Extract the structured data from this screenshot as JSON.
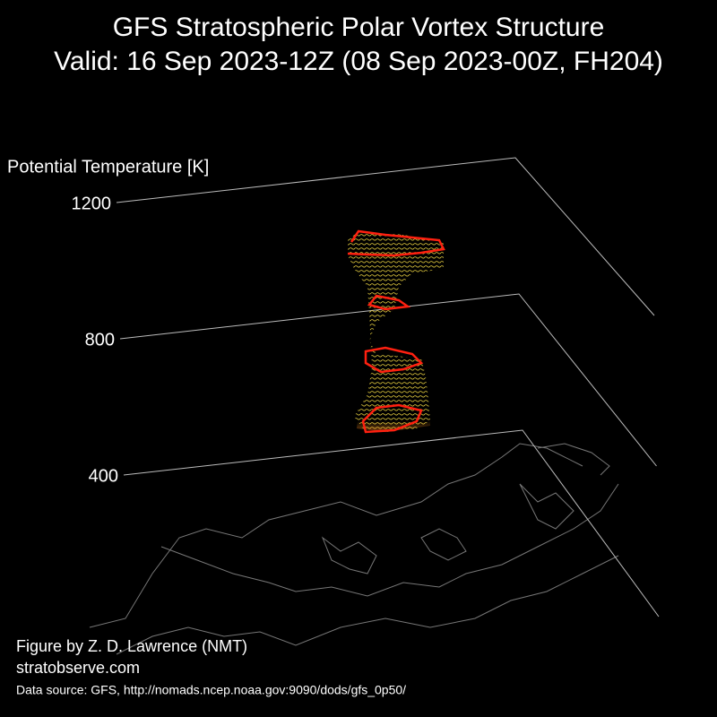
{
  "chart_data": {
    "type": "vortex3d",
    "title": "GFS Stratospheric Polar Vortex Structure",
    "subtitle": "Valid: 16 Sep 2023-12Z  (08 Sep 2023-00Z, FH204)",
    "ylabel": "Potential Temperature [K]",
    "ylim": [
      400,
      1200
    ],
    "yticks": [
      400,
      800,
      1200
    ],
    "credit": "Figure by Z. D. Lawrence (NMT)",
    "website": "stratobserve.com",
    "source": "Data source: GFS, http://nomads.ncep.noaa.gov:9090/dods/gfs_0p50/"
  }
}
